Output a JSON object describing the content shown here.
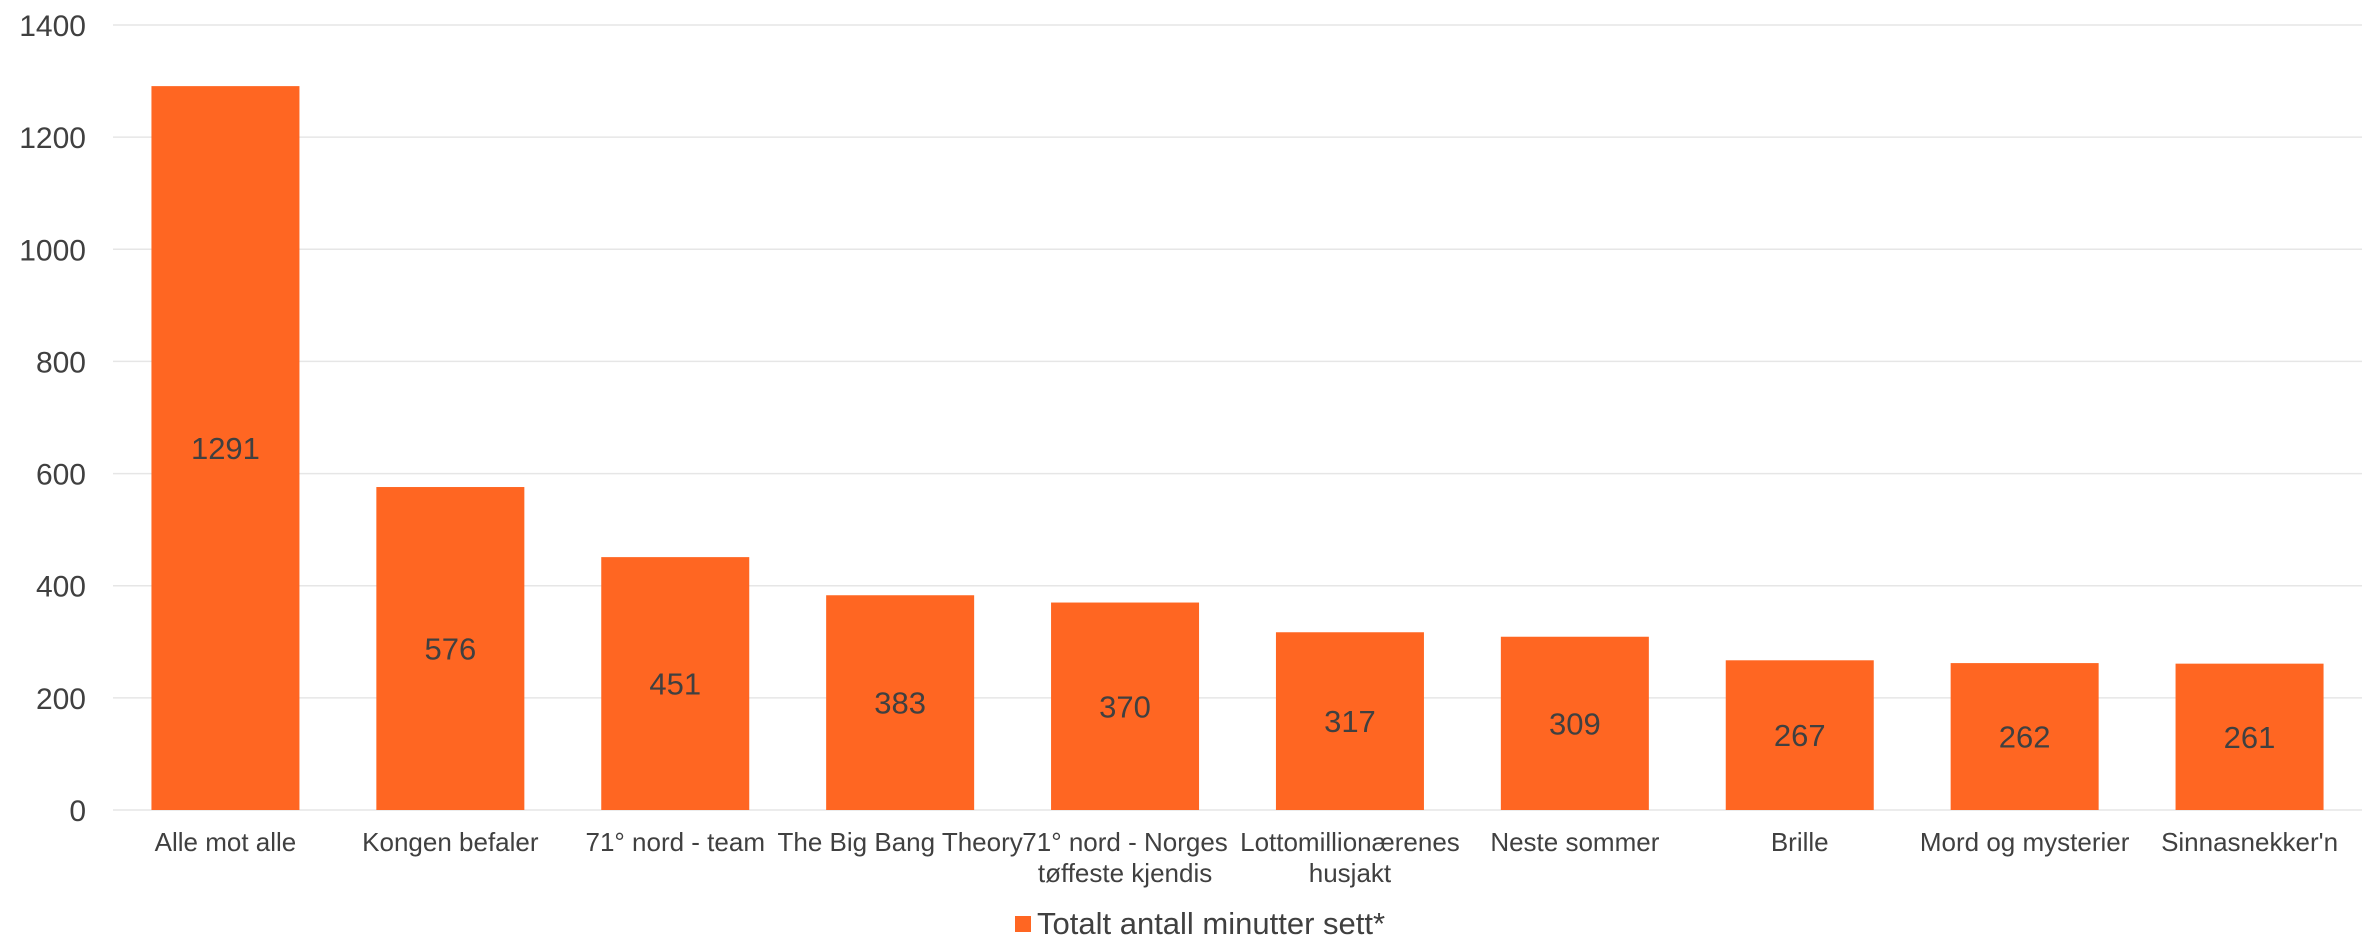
{
  "colors": {
    "bar": "#FF6622"
  },
  "chart_data": {
    "type": "bar",
    "categories": [
      "Alle mot alle",
      "Kongen befaler",
      "71° nord - team",
      "The Big Bang Theory",
      "71° nord - Norges tøffeste kjendis",
      "Lottomillionærenes husjakt",
      "Neste sommer",
      "Brille",
      "Mord og mysterier",
      "Sinnasnekker'n"
    ],
    "series": [
      {
        "name": "Totalt antall minutter sett*",
        "values": [
          1291,
          576,
          451,
          383,
          370,
          317,
          309,
          267,
          262,
          261
        ]
      }
    ],
    "ylim": [
      0,
      1400
    ],
    "yticks": [
      0,
      200,
      400,
      600,
      800,
      1000,
      1200,
      1400
    ],
    "grid": true,
    "legend": "bottom",
    "data_labels": true
  }
}
